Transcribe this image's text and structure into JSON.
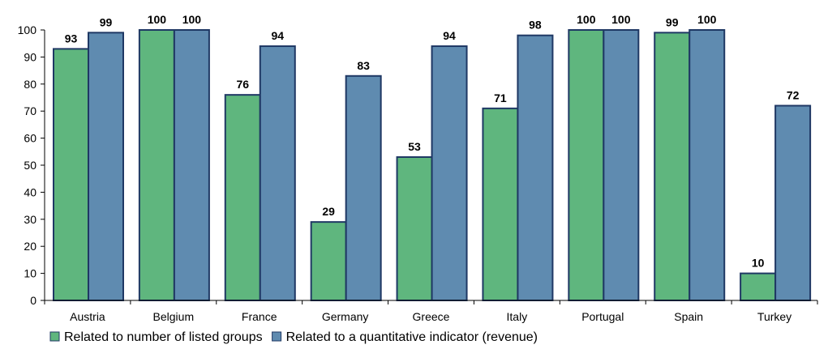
{
  "chart_data": {
    "type": "bar",
    "categories": [
      "Austria",
      "Belgium",
      "France",
      "Germany",
      "Greece",
      "Italy",
      "Portugal",
      "Spain",
      "Turkey"
    ],
    "series": [
      {
        "name": "Related to number of listed groups",
        "color": "#5fb67e",
        "values": [
          93,
          100,
          76,
          29,
          53,
          71,
          100,
          99,
          10
        ],
        "labels": [
          "93",
          "100",
          "76",
          "29",
          "53",
          "71",
          "100",
          "99",
          "10"
        ]
      },
      {
        "name": "Related to a quantitative indicator (revenue)",
        "color": "#5f8bb0",
        "values": [
          99,
          100,
          94,
          83,
          94,
          98,
          100,
          100,
          72
        ],
        "labels": [
          "99",
          "100",
          "94",
          "83",
          "94",
          "98",
          "100",
          "100",
          "72"
        ]
      }
    ],
    "ylim": [
      0,
      100
    ],
    "yticks": [
      "0",
      "10",
      "20",
      "30",
      "40",
      "50",
      "60",
      "70",
      "80",
      "90",
      "100"
    ],
    "title": "",
    "xlabel": "",
    "ylabel": "",
    "grid": false,
    "legend": "bottom-left",
    "bar_border_color": "#1f3864"
  }
}
